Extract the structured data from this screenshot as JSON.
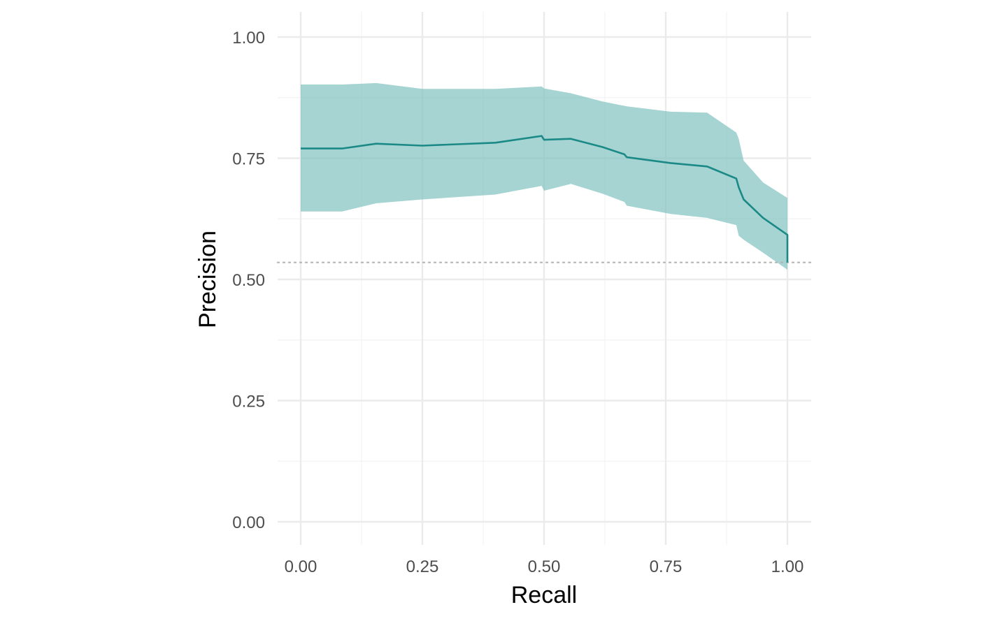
{
  "chart_data": {
    "type": "line",
    "title": "",
    "xlabel": "Recall",
    "ylabel": "Precision",
    "xlim": [
      0,
      1
    ],
    "ylim": [
      0,
      1
    ],
    "x_ticks": [
      "0.00",
      "0.25",
      "0.50",
      "0.75",
      "1.00"
    ],
    "y_ticks": [
      "0.00",
      "0.25",
      "0.50",
      "0.75",
      "1.00"
    ],
    "grid": true,
    "legend": "none",
    "baseline": {
      "y": 0.535,
      "style": "dotted",
      "color": "#b3b3b3"
    },
    "series": [
      {
        "color": "#1b8a87",
        "band_color": "#7bbfbd",
        "x": [
          0.0,
          0.085,
          0.155,
          0.25,
          0.4,
          0.495,
          0.5,
          0.555,
          0.62,
          0.665,
          0.67,
          0.76,
          0.835,
          0.895,
          0.9,
          0.91,
          0.95,
          1.0,
          1.0
        ],
        "y": [
          0.77,
          0.77,
          0.78,
          0.776,
          0.782,
          0.796,
          0.788,
          0.79,
          0.773,
          0.758,
          0.752,
          0.74,
          0.733,
          0.708,
          0.69,
          0.665,
          0.627,
          0.592,
          0.535
        ],
        "lower": [
          0.64,
          0.64,
          0.657,
          0.665,
          0.675,
          0.693,
          0.683,
          0.697,
          0.677,
          0.66,
          0.652,
          0.635,
          0.627,
          0.612,
          0.59,
          0.582,
          0.555,
          0.52,
          0.52
        ],
        "upper": [
          0.902,
          0.902,
          0.905,
          0.893,
          0.893,
          0.898,
          0.894,
          0.884,
          0.867,
          0.858,
          0.857,
          0.846,
          0.844,
          0.803,
          0.79,
          0.745,
          0.7,
          0.668,
          0.668
        ]
      }
    ]
  }
}
